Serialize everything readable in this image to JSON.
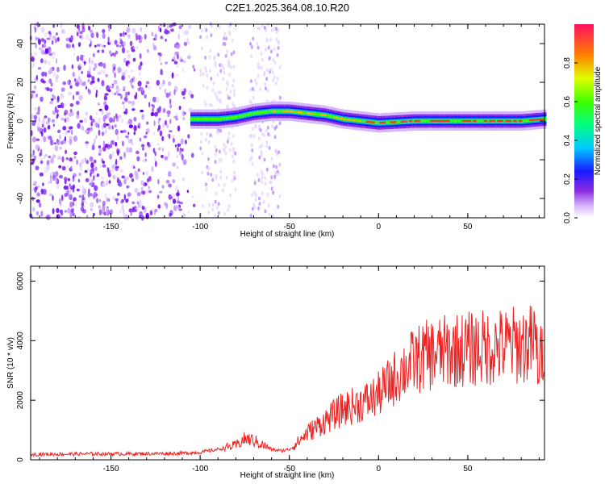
{
  "chart_data": [
    {
      "type": "heatmap",
      "title": "C2E1.2025.364.08.10.R20",
      "xlabel": "Height of straight line (km)",
      "ylabel": "Frequency (Hz)",
      "xlim": [
        -195,
        93
      ],
      "ylim": [
        -50,
        50
      ],
      "xticks": [
        -150,
        -100,
        -50,
        0,
        50
      ],
      "yticks": [
        -40,
        -20,
        0,
        20,
        40
      ],
      "colorbar": {
        "label": "Normalized spectral amplitude",
        "range": [
          0,
          1
        ],
        "ticks": [
          "0.0",
          "0.2",
          "0.4",
          "0.6",
          "0.8"
        ]
      },
      "ridge": {
        "description_points": [
          [
            -105,
            1
          ],
          [
            -90,
            1
          ],
          [
            -80,
            2
          ],
          [
            -70,
            4
          ],
          [
            -60,
            5
          ],
          [
            -50,
            5
          ],
          [
            -40,
            4
          ],
          [
            -30,
            3
          ],
          [
            -20,
            1
          ],
          [
            -10,
            0
          ],
          [
            0,
            -1
          ],
          [
            20,
            0
          ],
          [
            40,
            0
          ],
          [
            60,
            0
          ],
          [
            80,
            0
          ],
          [
            93,
            1
          ]
        ]
      }
    },
    {
      "type": "line",
      "title": "",
      "xlabel": "Height of straight line (km)",
      "ylabel": "SNR (10 * v/v)",
      "xlim": [
        -195,
        93
      ],
      "ylim": [
        0,
        6500
      ],
      "xticks": [
        -150,
        -100,
        -50,
        0,
        50
      ],
      "yticks": [
        0,
        2000,
        4000,
        6000
      ],
      "series": [
        {
          "name": "SNR",
          "color": "#ee2222",
          "x": [
            -195,
            -180,
            -160,
            -140,
            -120,
            -110,
            -100,
            -90,
            -80,
            -75,
            -70,
            -65,
            -60,
            -55,
            -50,
            -45,
            -40,
            -35,
            -30,
            -25,
            -20,
            -15,
            -10,
            -5,
            0,
            5,
            10,
            15,
            20,
            25,
            30,
            35,
            40,
            45,
            50,
            55,
            60,
            65,
            70,
            75,
            80,
            85,
            88,
            90,
            93
          ],
          "values": [
            180,
            190,
            200,
            200,
            210,
            220,
            250,
            350,
            480,
            700,
            650,
            500,
            350,
            300,
            350,
            600,
            900,
            1100,
            1300,
            1500,
            1700,
            1800,
            1900,
            2000,
            2200,
            2500,
            2800,
            3100,
            3300,
            3450,
            3550,
            3600,
            3650,
            3700,
            3700,
            3750,
            3750,
            3800,
            3800,
            3850,
            3850,
            3900,
            4000,
            3000,
            4200
          ]
        }
      ]
    }
  ]
}
